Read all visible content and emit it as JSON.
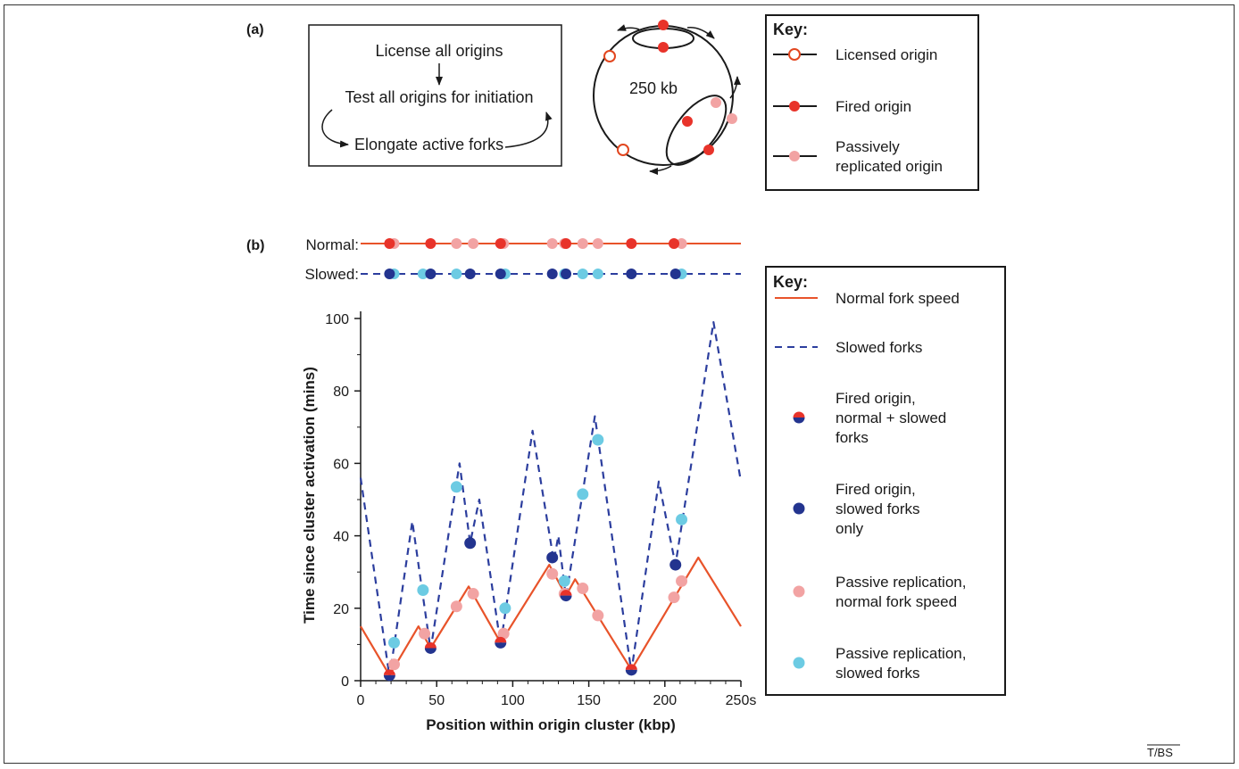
{
  "panel_a": {
    "label": "(a)",
    "flow": {
      "step1": "License all origins",
      "step2": "Test all origins for initiation",
      "step3": "Elongate active forks"
    },
    "circle_label": "250  kb",
    "key": {
      "title": "Key:",
      "items": [
        {
          "text": [
            "Licensed origin"
          ],
          "marker": "open-circle",
          "color": "#e2461f"
        },
        {
          "text": [
            "Fired origin"
          ],
          "marker": "filled-circle",
          "color": "#e8332a"
        },
        {
          "text": [
            "Passively",
            "replicated origin"
          ],
          "marker": "filled-circle",
          "color": "#f2a3a3"
        }
      ]
    }
  },
  "panel_b": {
    "label": "(b)",
    "row_normal_label": "Normal:",
    "row_slowed_label": "Slowed:",
    "key": {
      "title": "Key:",
      "items": [
        {
          "text": [
            "Normal fork speed"
          ],
          "marker": "solid-line",
          "color": "#e8532a"
        },
        {
          "text": [
            "Slowed forks"
          ],
          "marker": "dashed-line",
          "color": "#2c3e9e"
        },
        {
          "text": [
            "Fired origin,",
            "normal + slowed",
            "forks"
          ],
          "marker": "half-circle"
        },
        {
          "text": [
            "Fired origin,",
            "slowed forks",
            "only"
          ],
          "marker": "filled-circle",
          "color": "#23348f"
        },
        {
          "text": [
            "Passive replication,",
            "normal fork speed"
          ],
          "marker": "filled-circle",
          "color": "#f2a3a3"
        },
        {
          "text": [
            "Passive replication,",
            "slowed forks"
          ],
          "marker": "filled-circle",
          "color": "#6ccbe3"
        }
      ]
    }
  },
  "colors": {
    "red": "#e8332a",
    "orange_line": "#e8532a",
    "pink": "#f2a3a3",
    "navy": "#23348f",
    "dash_line": "#2c3e9e",
    "cyan": "#6ccbe3"
  },
  "footer": "T/BS",
  "chart_data": {
    "type": "line",
    "xlabel": "Position within origin cluster (kbp)",
    "ylabel": "Time since cluster activation (mins)",
    "xlim": [
      0,
      250
    ],
    "ylim": [
      0,
      100
    ],
    "x_ticks": [
      0,
      50,
      100,
      150,
      200,
      250
    ],
    "x_tick_labels": [
      "0",
      "50",
      "100",
      "150",
      "200",
      "250s"
    ],
    "y_ticks": [
      0,
      20,
      40,
      60,
      80,
      100
    ],
    "series": [
      {
        "name": "Normal fork speed",
        "style": "solid",
        "points": [
          [
            0,
            15
          ],
          [
            19,
            1.5
          ],
          [
            38,
            15
          ],
          [
            46,
            9
          ],
          [
            71,
            26
          ],
          [
            92,
            10.5
          ],
          [
            124,
            32
          ],
          [
            135,
            23.5
          ],
          [
            141,
            28
          ],
          [
            178,
            3
          ],
          [
            222,
            34
          ],
          [
            250,
            15
          ]
        ]
      },
      {
        "name": "Slowed forks",
        "style": "dashed",
        "points": [
          [
            0,
            56
          ],
          [
            19,
            1
          ],
          [
            34,
            44
          ],
          [
            46,
            8.5
          ],
          [
            65,
            60
          ],
          [
            72,
            38
          ],
          [
            78,
            50
          ],
          [
            92,
            10
          ],
          [
            113,
            69
          ],
          [
            127,
            33
          ],
          [
            130,
            40
          ],
          [
            135,
            23
          ],
          [
            154,
            73
          ],
          [
            178,
            2.5
          ],
          [
            196,
            55
          ],
          [
            207,
            32
          ],
          [
            232,
            99
          ],
          [
            250,
            55
          ]
        ]
      }
    ],
    "markers": {
      "fired_normal_and_slowed": [
        [
          19,
          1.5
        ],
        [
          46,
          9
        ],
        [
          92,
          10.5
        ],
        [
          135,
          23.5
        ],
        [
          178,
          3
        ]
      ],
      "fired_slowed_only": [
        [
          72,
          38
        ],
        [
          126,
          34
        ],
        [
          207,
          32
        ]
      ],
      "passive_normal": [
        [
          22,
          4.5
        ],
        [
          42,
          13
        ],
        [
          63,
          20.5
        ],
        [
          74,
          24
        ],
        [
          94,
          13
        ],
        [
          126,
          29.5
        ],
        [
          134,
          24
        ],
        [
          146,
          25.5
        ],
        [
          156,
          18
        ],
        [
          206,
          23
        ],
        [
          211,
          27.5
        ]
      ],
      "passive_slowed": [
        [
          22,
          10.5
        ],
        [
          41,
          25
        ],
        [
          63,
          53.5
        ],
        [
          95,
          20
        ],
        [
          134,
          27.5
        ],
        [
          146,
          51.5
        ],
        [
          156,
          66.5
        ],
        [
          211,
          44.5
        ]
      ]
    },
    "top_rows": {
      "normal": {
        "fired": [
          19,
          46,
          92,
          135,
          178,
          206
        ],
        "passive": [
          22,
          63,
          74,
          94,
          126,
          134,
          146,
          156,
          211
        ]
      },
      "slowed": {
        "fired": [
          19,
          46,
          72,
          92,
          126,
          135,
          178,
          207
        ],
        "passive": [
          22,
          41,
          63,
          95,
          134,
          146,
          156,
          211
        ]
      }
    }
  }
}
